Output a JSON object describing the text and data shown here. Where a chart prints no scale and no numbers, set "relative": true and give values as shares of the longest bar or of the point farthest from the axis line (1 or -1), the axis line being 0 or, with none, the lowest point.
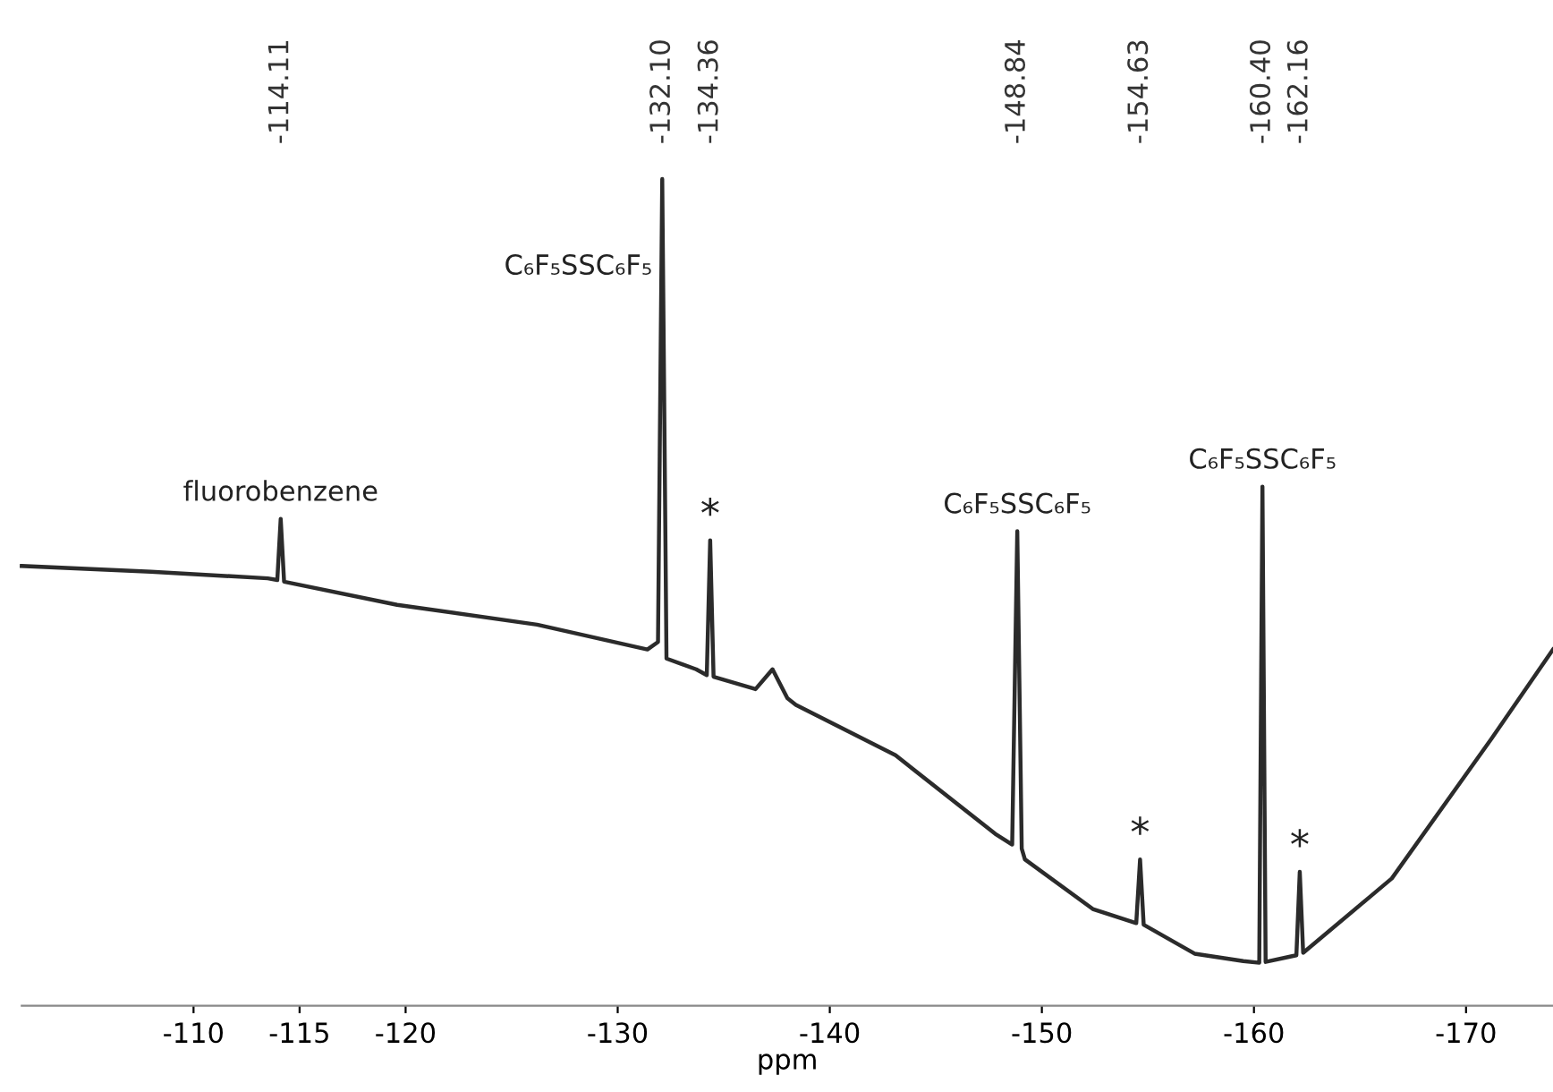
{
  "chart_data": {
    "type": "line",
    "relative": true,
    "xlabel": "ppm",
    "xlim": [
      -101.9,
      -174.1
    ],
    "xticks": [
      -110,
      -115,
      -120,
      -130,
      -140,
      -150,
      -160,
      -170
    ],
    "x2lim": [
      -101.9,
      -174.1
    ],
    "x2ticks": [
      {
        "value": -114.11,
        "label": "-114.11"
      },
      {
        "value": -132.1,
        "label": "-132.10"
      },
      {
        "value": -134.36,
        "label": "-134.36"
      },
      {
        "value": -148.84,
        "label": "-148.84"
      },
      {
        "value": -154.63,
        "label": "-154.63"
      },
      {
        "value": -160.4,
        "label": "-160.40"
      },
      {
        "value": -162.16,
        "label": "-162.16"
      }
    ],
    "grid": false,
    "legend": false,
    "marker": "none",
    "line_style": "solid",
    "series": [
      {
        "color": "#2b2b2b",
        "x": [
          -101.9,
          -108,
          -113.5,
          -113.95,
          -114.11,
          -114.27,
          -119.6,
          -126.2,
          -131.4,
          -131.9,
          -132.1,
          -132.3,
          -133.7,
          -134.2,
          -134.36,
          -134.52,
          -136.5,
          -137.3,
          -138,
          -138.4,
          -143.1,
          -147.8,
          -148.6,
          -148.84,
          -149.05,
          -149.2,
          -152.4,
          -154.45,
          -154.63,
          -154.8,
          -157.2,
          -159.5,
          -160.25,
          -160.4,
          -160.55,
          -161.8,
          -162.0,
          -162.16,
          -162.32,
          -166.5,
          -171.2,
          -174.1
        ],
        "values": [
          0.532,
          0.525,
          0.517,
          0.515,
          0.589,
          0.513,
          0.485,
          0.461,
          0.431,
          0.44,
          1.0,
          0.42,
          0.407,
          0.4,
          0.563,
          0.398,
          0.383,
          0.407,
          0.372,
          0.364,
          0.303,
          0.208,
          0.195,
          0.574,
          0.19,
          0.177,
          0.117,
          0.1,
          0.177,
          0.098,
          0.063,
          0.054,
          0.052,
          0.628,
          0.053,
          0.06,
          0.061,
          0.162,
          0.064,
          0.154,
          0.323,
          0.431
        ]
      }
    ],
    "annotations": [
      {
        "text": "fluorobenzene",
        "x": -114.11,
        "y": 0.589
      },
      {
        "text": "C₆F₅SSC₆F₅",
        "x": -132.1,
        "y": 1.0
      },
      {
        "text": "*",
        "x": -134.36,
        "y": 0.563
      },
      {
        "text": "C₆F₅SSC₆F₅",
        "x": -148.84,
        "y": 0.574
      },
      {
        "text": "*",
        "x": -154.63,
        "y": 0.177
      },
      {
        "text": "C₆F₅SSC₆F₅",
        "x": -160.4,
        "y": 0.628
      },
      {
        "text": "*",
        "x": -162.16,
        "y": 0.162
      }
    ]
  }
}
